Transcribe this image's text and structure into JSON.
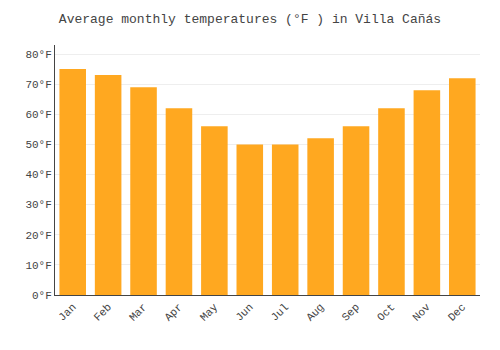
{
  "chart_data": {
    "type": "bar",
    "title": "Average monthly temperatures (°F ) in Villa Cañás",
    "categories": [
      "Jan",
      "Feb",
      "Mar",
      "Apr",
      "May",
      "Jun",
      "Jul",
      "Aug",
      "Sep",
      "Oct",
      "Nov",
      "Dec"
    ],
    "values": [
      75,
      73,
      69,
      62,
      56,
      50,
      50,
      52,
      56,
      62,
      68,
      72
    ],
    "color": "#FFA820",
    "ylim": [
      0,
      83
    ],
    "yticks": [
      {
        "value": 0,
        "label": "0°F"
      },
      {
        "value": 10,
        "label": "10°F"
      },
      {
        "value": 20,
        "label": "20°F"
      },
      {
        "value": 30,
        "label": "30°F"
      },
      {
        "value": 40,
        "label": "40°F"
      },
      {
        "value": 50,
        "label": "50°F"
      },
      {
        "value": 60,
        "label": "60°F"
      },
      {
        "value": 70,
        "label": "70°F"
      },
      {
        "value": 80,
        "label": "80°F"
      }
    ],
    "grid": true
  }
}
